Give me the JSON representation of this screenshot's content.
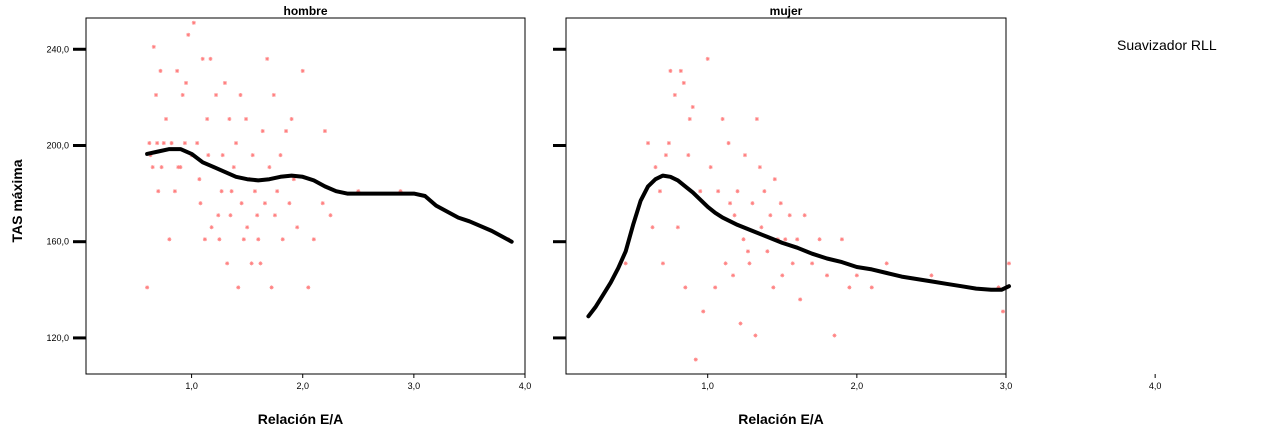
{
  "chart_data": {
    "type": "scatter",
    "legend": {
      "label": "Suavizador RLL",
      "placement": "top-right"
    },
    "ylabel": "TAS máxima",
    "xlabel": "Relación E/A",
    "ylim": [
      105,
      253
    ],
    "yticks": [
      120,
      160,
      200,
      240
    ],
    "ytick_labels": [
      "120,0",
      "160,0",
      "200,0",
      "240,0"
    ],
    "marker_color": "#ff7f7f",
    "line_color": "#000000",
    "panels": [
      {
        "title": "hombre",
        "xlim": [
          0.05,
          4.0
        ],
        "xticks": [
          1.0,
          2.0,
          3.0,
          4.0
        ],
        "xtick_labels": [
          "1,0",
          "2,0",
          "3,0",
          "4,0"
        ],
        "points": [
          [
            0.6,
            141
          ],
          [
            0.62,
            201
          ],
          [
            0.63,
            196
          ],
          [
            0.65,
            191
          ],
          [
            0.66,
            241
          ],
          [
            0.68,
            221
          ],
          [
            0.69,
            201
          ],
          [
            0.7,
            181
          ],
          [
            0.72,
            231
          ],
          [
            0.73,
            191
          ],
          [
            0.75,
            201
          ],
          [
            0.77,
            211
          ],
          [
            0.8,
            161
          ],
          [
            0.82,
            201
          ],
          [
            0.85,
            181
          ],
          [
            0.87,
            231
          ],
          [
            0.88,
            191
          ],
          [
            0.9,
            191
          ],
          [
            0.92,
            221
          ],
          [
            0.94,
            201
          ],
          [
            0.95,
            226
          ],
          [
            0.97,
            246
          ],
          [
            1.0,
            196
          ],
          [
            1.02,
            251
          ],
          [
            1.05,
            201
          ],
          [
            1.07,
            186
          ],
          [
            1.08,
            176
          ],
          [
            1.1,
            236
          ],
          [
            1.12,
            161
          ],
          [
            1.14,
            211
          ],
          [
            1.15,
            196
          ],
          [
            1.17,
            236
          ],
          [
            1.18,
            166
          ],
          [
            1.2,
            191
          ],
          [
            1.22,
            221
          ],
          [
            1.24,
            171
          ],
          [
            1.25,
            161
          ],
          [
            1.27,
            181
          ],
          [
            1.28,
            196
          ],
          [
            1.3,
            226
          ],
          [
            1.32,
            151
          ],
          [
            1.34,
            211
          ],
          [
            1.35,
            171
          ],
          [
            1.36,
            181
          ],
          [
            1.38,
            191
          ],
          [
            1.4,
            201
          ],
          [
            1.42,
            141
          ],
          [
            1.44,
            221
          ],
          [
            1.45,
            176
          ],
          [
            1.47,
            161
          ],
          [
            1.49,
            211
          ],
          [
            1.5,
            166
          ],
          [
            1.52,
            186
          ],
          [
            1.54,
            151
          ],
          [
            1.55,
            196
          ],
          [
            1.57,
            181
          ],
          [
            1.59,
            171
          ],
          [
            1.6,
            161
          ],
          [
            1.62,
            151
          ],
          [
            1.64,
            206
          ],
          [
            1.66,
            176
          ],
          [
            1.68,
            236
          ],
          [
            1.7,
            191
          ],
          [
            1.72,
            141
          ],
          [
            1.74,
            221
          ],
          [
            1.75,
            171
          ],
          [
            1.77,
            181
          ],
          [
            1.8,
            196
          ],
          [
            1.82,
            161
          ],
          [
            1.85,
            206
          ],
          [
            1.88,
            176
          ],
          [
            1.9,
            211
          ],
          [
            1.92,
            186
          ],
          [
            1.95,
            166
          ],
          [
            2.0,
            231
          ],
          [
            2.05,
            141
          ],
          [
            2.1,
            161
          ],
          [
            2.18,
            176
          ],
          [
            2.2,
            206
          ],
          [
            2.25,
            171
          ],
          [
            2.5,
            181
          ],
          [
            2.88,
            181
          ],
          [
            3.85,
            161
          ]
        ],
        "smoother": [
          [
            0.6,
            196.5
          ],
          [
            0.7,
            197.5
          ],
          [
            0.8,
            198.5
          ],
          [
            0.9,
            198.5
          ],
          [
            1.0,
            196.5
          ],
          [
            1.1,
            193
          ],
          [
            1.2,
            191
          ],
          [
            1.3,
            189
          ],
          [
            1.4,
            187
          ],
          [
            1.5,
            186
          ],
          [
            1.6,
            185.5
          ],
          [
            1.7,
            186
          ],
          [
            1.8,
            187
          ],
          [
            1.9,
            187.5
          ],
          [
            2.0,
            187
          ],
          [
            2.1,
            185.5
          ],
          [
            2.2,
            183
          ],
          [
            2.3,
            181
          ],
          [
            2.4,
            180
          ],
          [
            2.6,
            180
          ],
          [
            2.8,
            180
          ],
          [
            3.0,
            180
          ],
          [
            3.1,
            179
          ],
          [
            3.2,
            175
          ],
          [
            3.3,
            172.5
          ],
          [
            3.4,
            170
          ],
          [
            3.5,
            168.5
          ],
          [
            3.6,
            166.5
          ],
          [
            3.7,
            164.5
          ],
          [
            3.8,
            162
          ],
          [
            3.88,
            160
          ]
        ]
      },
      {
        "title": "mujer",
        "xlim": [
          0.05,
          3.0
        ],
        "xticks": [
          1.0,
          2.0,
          3.0,
          4.0
        ],
        "xtick_labels": [
          "1,0",
          "2,0",
          "3,0",
          "4,0"
        ],
        "points": [
          [
            0.45,
            151
          ],
          [
            0.6,
            201
          ],
          [
            0.63,
            166
          ],
          [
            0.65,
            191
          ],
          [
            0.68,
            181
          ],
          [
            0.7,
            151
          ],
          [
            0.72,
            196
          ],
          [
            0.74,
            201
          ],
          [
            0.75,
            231
          ],
          [
            0.78,
            221
          ],
          [
            0.8,
            166
          ],
          [
            0.82,
            231
          ],
          [
            0.84,
            226
          ],
          [
            0.85,
            141
          ],
          [
            0.87,
            196
          ],
          [
            0.88,
            211
          ],
          [
            0.9,
            216
          ],
          [
            0.92,
            111
          ],
          [
            0.95,
            181
          ],
          [
            0.97,
            131
          ],
          [
            1.0,
            236
          ],
          [
            1.02,
            191
          ],
          [
            1.05,
            141
          ],
          [
            1.07,
            181
          ],
          [
            1.1,
            211
          ],
          [
            1.12,
            151
          ],
          [
            1.14,
            201
          ],
          [
            1.15,
            176
          ],
          [
            1.17,
            146
          ],
          [
            1.18,
            171
          ],
          [
            1.2,
            181
          ],
          [
            1.22,
            126
          ],
          [
            1.24,
            161
          ],
          [
            1.25,
            196
          ],
          [
            1.27,
            156
          ],
          [
            1.28,
            151
          ],
          [
            1.3,
            176
          ],
          [
            1.32,
            121
          ],
          [
            1.33,
            211
          ],
          [
            1.35,
            191
          ],
          [
            1.36,
            166
          ],
          [
            1.38,
            181
          ],
          [
            1.4,
            156
          ],
          [
            1.42,
            171
          ],
          [
            1.44,
            141
          ],
          [
            1.45,
            186
          ],
          [
            1.47,
            161
          ],
          [
            1.49,
            176
          ],
          [
            1.5,
            146
          ],
          [
            1.52,
            161
          ],
          [
            1.55,
            171
          ],
          [
            1.57,
            151
          ],
          [
            1.6,
            161
          ],
          [
            1.62,
            136
          ],
          [
            1.65,
            171
          ],
          [
            1.7,
            151
          ],
          [
            1.75,
            161
          ],
          [
            1.8,
            146
          ],
          [
            1.85,
            121
          ],
          [
            1.9,
            161
          ],
          [
            1.95,
            141
          ],
          [
            2.0,
            146
          ],
          [
            2.1,
            141
          ],
          [
            2.2,
            151
          ],
          [
            2.5,
            146
          ],
          [
            2.95,
            141
          ],
          [
            2.98,
            131
          ],
          [
            3.02,
            151
          ]
        ],
        "smoother": [
          [
            0.2,
            129
          ],
          [
            0.25,
            133
          ],
          [
            0.3,
            138
          ],
          [
            0.35,
            143
          ],
          [
            0.4,
            149
          ],
          [
            0.45,
            156
          ],
          [
            0.5,
            167
          ],
          [
            0.55,
            177
          ],
          [
            0.6,
            183
          ],
          [
            0.65,
            186
          ],
          [
            0.7,
            187.5
          ],
          [
            0.75,
            187
          ],
          [
            0.8,
            185.5
          ],
          [
            0.85,
            183
          ],
          [
            0.9,
            180.5
          ],
          [
            0.95,
            177.5
          ],
          [
            1.0,
            174.5
          ],
          [
            1.05,
            172
          ],
          [
            1.1,
            170
          ],
          [
            1.2,
            167
          ],
          [
            1.3,
            164.5
          ],
          [
            1.4,
            162
          ],
          [
            1.5,
            159.5
          ],
          [
            1.6,
            157.5
          ],
          [
            1.7,
            155
          ],
          [
            1.8,
            153
          ],
          [
            1.9,
            151.5
          ],
          [
            2.0,
            149.5
          ],
          [
            2.1,
            148.5
          ],
          [
            2.2,
            147
          ],
          [
            2.3,
            145.5
          ],
          [
            2.4,
            144.5
          ],
          [
            2.5,
            143.5
          ],
          [
            2.6,
            142.5
          ],
          [
            2.7,
            141.5
          ],
          [
            2.8,
            140.5
          ],
          [
            2.9,
            140
          ],
          [
            2.97,
            140
          ],
          [
            3.02,
            141.5
          ]
        ]
      }
    ]
  }
}
